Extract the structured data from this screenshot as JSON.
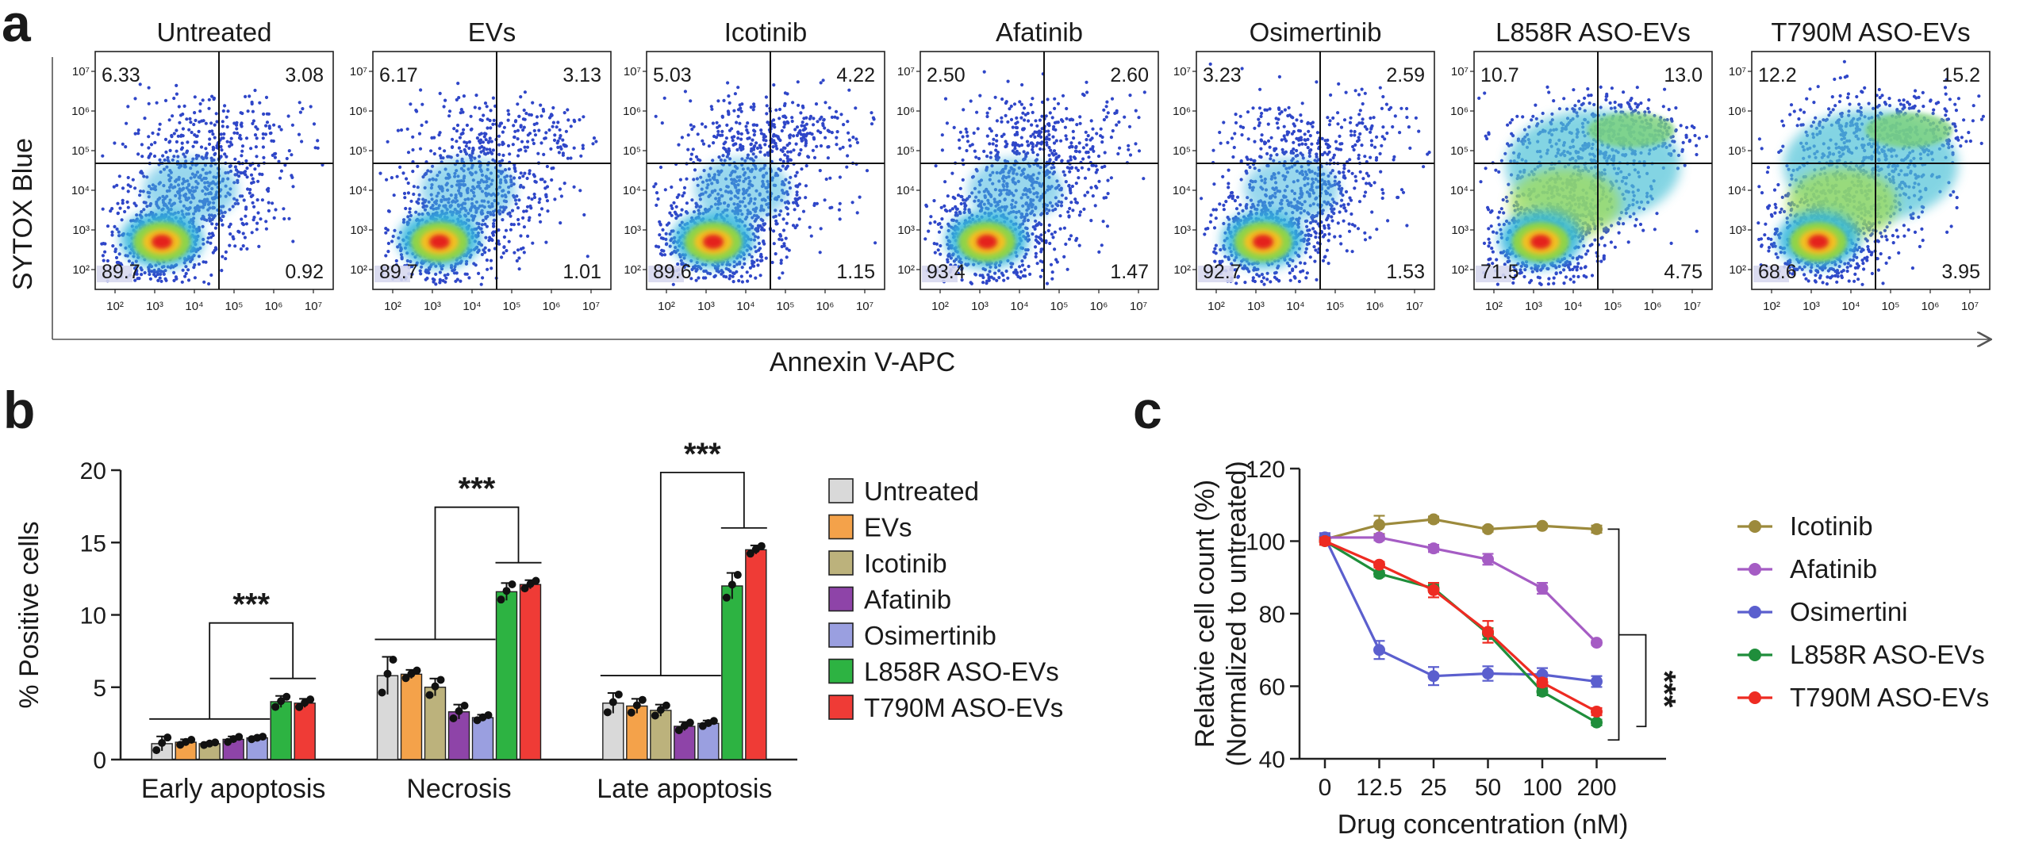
{
  "panels": {
    "a": {
      "letter": "a",
      "x_title": "Annexin V-APC",
      "y_title": "SYTOX Blue",
      "plots": [
        {
          "title": "Untreated",
          "ul": "6.33",
          "ur": "3.08",
          "ll": "89.7",
          "lr": "0.92"
        },
        {
          "title": "EVs",
          "ul": "6.17",
          "ur": "3.13",
          "ll": "89.7",
          "lr": "1.01"
        },
        {
          "title": "Icotinib",
          "ul": "5.03",
          "ur": "4.22",
          "ll": "89.6",
          "lr": "1.15"
        },
        {
          "title": "Afatinib",
          "ul": "2.50",
          "ur": "2.60",
          "ll": "93.4",
          "lr": "1.47"
        },
        {
          "title": "Osimertinib",
          "ul": "3.23",
          "ur": "2.59",
          "ll": "92.7",
          "lr": "1.53"
        },
        {
          "title": "L858R ASO-EVs",
          "ul": "10.7",
          "ur": "13.0",
          "ll": "71.5",
          "lr": "4.75"
        },
        {
          "title": "T790M ASO-EVs",
          "ul": "12.2",
          "ur": "15.2",
          "ll": "68.6",
          "lr": "3.95"
        }
      ],
      "x_tick_labels": [
        "10²",
        "10³",
        "10⁴",
        "10⁵",
        "10⁶",
        "10⁷"
      ],
      "y_tick_labels": [
        "10²",
        "10³",
        "10⁴",
        "10⁵",
        "10⁶",
        "10⁷"
      ]
    },
    "b": {
      "letter": "b",
      "significance": "***"
    },
    "c": {
      "letter": "c",
      "significance": "***"
    }
  },
  "colors": {
    "Untreated": "#d9d9d9",
    "EVs": "#f4a24a",
    "Icotinib": "#bcb27c",
    "Afatinib": "#8e44a8",
    "Osimertinib": "#9a9fe0",
    "L858R ASO-EVs": "#2db342",
    "T790M ASO-EVs": "#ef3b36",
    "line_Icotinib": "#9c8a3c",
    "line_Afatinib": "#a55cc4",
    "line_Osimertini": "#5b5fce",
    "line_L858R": "#1f8e3b",
    "line_T790M": "#ee2b22"
  },
  "chart_data": [
    {
      "type": "bar",
      "title": "",
      "xlabel": "",
      "ylabel": "% Positive cells",
      "ylim": [
        0,
        20
      ],
      "yticks": [
        0,
        5,
        10,
        15,
        20
      ],
      "categories": [
        "Early apoptosis",
        "Necrosis",
        "Late apoptosis"
      ],
      "series": [
        {
          "name": "Untreated",
          "values": [
            1.1,
            5.8,
            3.9
          ],
          "errors": [
            0.5,
            1.3,
            0.7
          ]
        },
        {
          "name": "EVs",
          "values": [
            1.2,
            5.9,
            3.7
          ],
          "errors": [
            0.2,
            0.3,
            0.5
          ]
        },
        {
          "name": "Icotinib",
          "values": [
            1.1,
            5.0,
            3.4
          ],
          "errors": [
            0.1,
            0.6,
            0.4
          ]
        },
        {
          "name": "Afatinib",
          "values": [
            1.4,
            3.3,
            2.3
          ],
          "errors": [
            0.2,
            0.5,
            0.3
          ]
        },
        {
          "name": "Osimertinib",
          "values": [
            1.5,
            2.9,
            2.5
          ],
          "errors": [
            0.1,
            0.2,
            0.2
          ]
        },
        {
          "name": "L858R ASO-EVs",
          "values": [
            4.0,
            11.6,
            12.0
          ],
          "errors": [
            0.4,
            0.6,
            0.9
          ]
        },
        {
          "name": "T790M ASO-EVs",
          "values": [
            3.9,
            12.1,
            14.5
          ],
          "errors": [
            0.3,
            0.3,
            0.3
          ]
        }
      ],
      "legend": [
        "Untreated",
        "EVs",
        "Icotinib",
        "Afatinib",
        "Osimertinib",
        "L858R ASO-EVs",
        "T790M ASO-EVs"
      ],
      "legend_position": "right"
    },
    {
      "type": "line",
      "title": "",
      "xlabel": "Drug concentration (nM)",
      "ylabel": "Relatvie cell count (%)",
      "ylabel2": "(Normalized to untreated)",
      "ylim": [
        40,
        120
      ],
      "yticks": [
        40,
        60,
        80,
        100,
        120
      ],
      "categories": [
        "0",
        "12.5",
        "25",
        "50",
        "100",
        "200"
      ],
      "series": [
        {
          "name": "Icotinib",
          "values": [
            100.5,
            104.5,
            106,
            103.3,
            104.2,
            103.3
          ],
          "errors": [
            1.5,
            2.5,
            0.8,
            0.7,
            0.5,
            1.0
          ]
        },
        {
          "name": "Afatinib",
          "values": [
            101,
            101,
            98,
            95,
            87,
            72
          ],
          "errors": [
            1.2,
            0.8,
            1.0,
            1.5,
            1.5,
            0.6
          ]
        },
        {
          "name": "Osimertini",
          "values": [
            101,
            70,
            62.8,
            63.5,
            63.2,
            61.3
          ],
          "errors": [
            1.2,
            2.5,
            2.5,
            2.0,
            1.8,
            1.5
          ]
        },
        {
          "name": "L858R ASO-EVs",
          "values": [
            100,
            91,
            87,
            74.5,
            58.5,
            50
          ],
          "errors": [
            1.0,
            0.8,
            1.0,
            1.5,
            1.0,
            0.8
          ]
        },
        {
          "name": "T790M ASO-EVs",
          "values": [
            100,
            93.5,
            86.5,
            75,
            61,
            53
          ],
          "errors": [
            1.0,
            0.8,
            2.0,
            3.0,
            1.0,
            1.0
          ]
        }
      ],
      "legend": [
        "Icotinib",
        "Afatinib",
        "Osimertini",
        "L858R ASO-EVs",
        "T790M ASO-EVs"
      ],
      "legend_position": "right"
    }
  ]
}
